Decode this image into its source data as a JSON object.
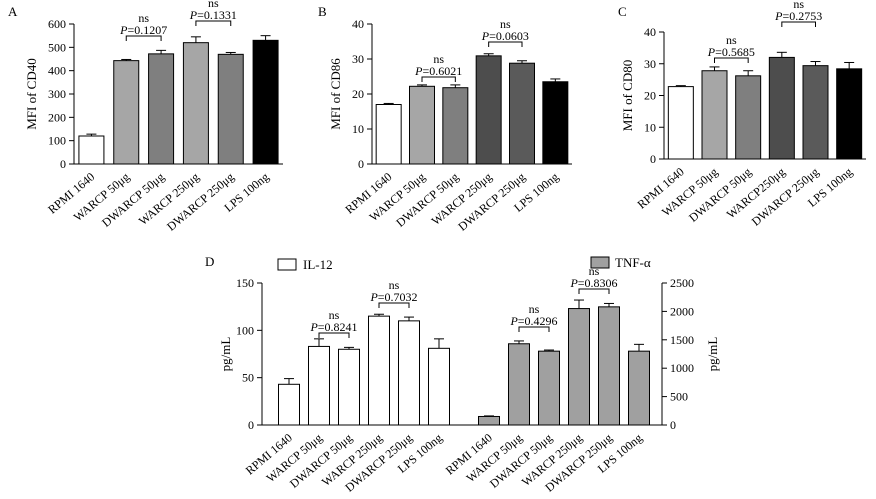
{
  "colors": {
    "white": "#ffffff",
    "light_gray": "#a6a6a6",
    "mid_gray": "#7f7f7f",
    "dark_gray": "#4d4d4d",
    "darker_gray": "#5a5a5a",
    "black": "#000000",
    "tnf_gray": "#a0a0a0"
  },
  "chart_data": [
    {
      "panel": "A",
      "type": "bar",
      "ylabel": "MFI of CD40",
      "ylim": [
        0,
        600
      ],
      "yticks": [
        0,
        100,
        200,
        300,
        400,
        500,
        600
      ],
      "categories": [
        "RPMI 1640",
        "WARCP 50μg",
        "DWARCP 50μg",
        "WARCP 250μg",
        "DWARCP 250μg",
        "LPS 100ng"
      ],
      "values": [
        120,
        443,
        472,
        520,
        470,
        530
      ],
      "errors": [
        8,
        5,
        15,
        25,
        8,
        20
      ],
      "bar_colors": [
        "white",
        "light_gray",
        "mid_gray",
        "light_gray",
        "mid_gray",
        "black"
      ],
      "annotations": [
        {
          "from": 1,
          "to": 2,
          "ns": "ns",
          "p_label": "P",
          "p_value": "=0.1207"
        },
        {
          "from": 3,
          "to": 4,
          "ns": "ns",
          "p_label": "P",
          "p_value": "=0.1331"
        }
      ]
    },
    {
      "panel": "B",
      "type": "bar",
      "ylabel": "MFI of CD86",
      "ylim": [
        0,
        40
      ],
      "yticks": [
        0,
        10,
        20,
        30,
        40
      ],
      "categories": [
        "RPMI 1640",
        "WARCP 50μg",
        "DWARCP 50μg",
        "WARCP 250μg",
        "DWARCP 250μg",
        "LPS 100ng"
      ],
      "values": [
        17,
        22.2,
        21.8,
        30.9,
        28.8,
        23.5
      ],
      "errors": [
        0.3,
        0.4,
        0.8,
        0.6,
        0.7,
        0.8
      ],
      "bar_colors": [
        "white",
        "light_gray",
        "mid_gray",
        "dark_gray",
        "darker_gray",
        "black"
      ],
      "annotations": [
        {
          "from": 1,
          "to": 2,
          "ns": "ns",
          "p_label": "P",
          "p_value": "=0.6021"
        },
        {
          "from": 3,
          "to": 4,
          "ns": "ns",
          "p_label": "P",
          "p_value": "=0.0603"
        }
      ]
    },
    {
      "panel": "C",
      "type": "bar",
      "ylabel": "MFI of CD80",
      "ylim": [
        0,
        40
      ],
      "yticks": [
        0,
        10,
        20,
        30,
        40
      ],
      "categories": [
        "RPMI 1640",
        "WARCP 50μg",
        "DWARCP 50μg",
        "WARCP250μg",
        "DWARCP 250μg",
        "LPS 100ng"
      ],
      "values": [
        22.8,
        27.8,
        26.2,
        32.0,
        29.4,
        28.4
      ],
      "errors": [
        0.3,
        1.2,
        1.6,
        1.6,
        1.3,
        2.0
      ],
      "bar_colors": [
        "white",
        "light_gray",
        "mid_gray",
        "dark_gray",
        "darker_gray",
        "black"
      ],
      "annotations": [
        {
          "from": 1,
          "to": 2,
          "ns": "ns",
          "p_label": "P",
          "p_value": "=0.5685"
        },
        {
          "from": 3,
          "to": 4,
          "ns": "ns",
          "p_label": "P",
          "p_value": "=0.2753"
        }
      ]
    },
    {
      "panel": "D",
      "type": "bar",
      "ylabel_left": "pg/mL",
      "ylabel_right": "pg/mL",
      "ylim_left": [
        0,
        150
      ],
      "yticks_left": [
        0,
        50,
        100,
        150
      ],
      "ylim_right": [
        0,
        2500
      ],
      "yticks_right": [
        0,
        500,
        1000,
        1500,
        2000,
        2500
      ],
      "categories": [
        "RPMI 1640",
        "WARCP 50μg",
        "DWARCP 50μg",
        "WARCP 250μg",
        "DWARCP 250μg",
        "LPS 100ng"
      ],
      "categories_right": [
        "RPMI 1640",
        "WARCP 50μg",
        "DWARCP 50μg",
        "WARCP 250μg",
        "DWARCP 250μg",
        "LPS 100ng"
      ],
      "series": [
        {
          "name": "IL-12",
          "axis": "left",
          "color": "white",
          "values": [
            43,
            83,
            80,
            115,
            110,
            81
          ],
          "errors": [
            6,
            8,
            2,
            2,
            4,
            10
          ],
          "annotations": [
            {
              "from": 1,
              "to": 2,
              "ns": "ns",
              "p_label": "P",
              "p_value": "=0.8241"
            },
            {
              "from": 3,
              "to": 4,
              "ns": "ns",
              "p_label": "P",
              "p_value": "=0.7032"
            }
          ]
        },
        {
          "name": "TNF-α",
          "axis": "right",
          "color": "tnf_gray",
          "values": [
            150,
            1430,
            1300,
            2050,
            2080,
            1300
          ],
          "errors": [
            10,
            50,
            20,
            150,
            60,
            120
          ],
          "annotations": [
            {
              "from": 1,
              "to": 2,
              "ns": "ns",
              "p_label": "P",
              "p_value": "=0.4296"
            },
            {
              "from": 3,
              "to": 4,
              "ns": "ns",
              "p_label": "P",
              "p_value": "=0.8306"
            }
          ]
        }
      ]
    }
  ]
}
